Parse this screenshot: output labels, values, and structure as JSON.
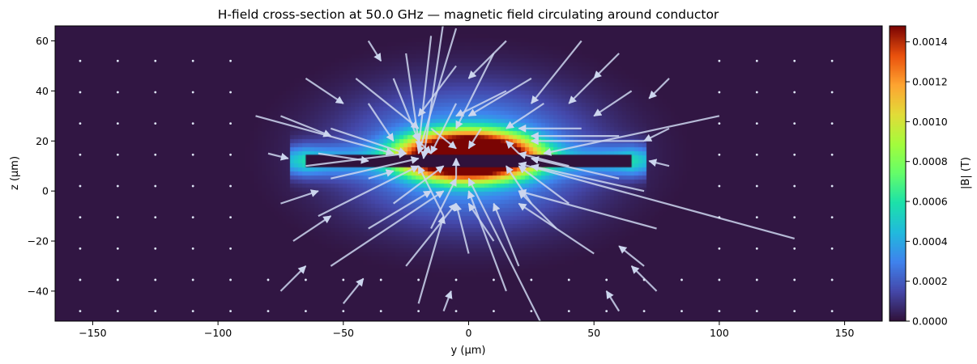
{
  "chart_data": {
    "type": "heatmap",
    "title": "H-field cross-section at 50.0 GHz — magnetic field circulating around conductor",
    "xlabel": "y (µm)",
    "ylabel": "z (µm)",
    "colorbar_label": "|B| (T)",
    "xlim": [
      -165,
      165
    ],
    "ylim": [
      -52,
      66
    ],
    "xticks": [
      -150,
      -100,
      -50,
      0,
      50,
      100,
      150
    ],
    "xtick_labels": [
      "−150",
      "−100",
      "−50",
      "0",
      "50",
      "100",
      "150"
    ],
    "yticks": [
      -40,
      -20,
      0,
      20,
      40,
      60
    ],
    "ytick_labels": [
      "−40",
      "−20",
      "0",
      "20",
      "40",
      "60"
    ],
    "clim": [
      0,
      0.00148
    ],
    "cticks": [
      0,
      0.0002,
      0.0004,
      0.0006,
      0.0008,
      0.001,
      0.0012,
      0.0014
    ],
    "ctick_labels": [
      "0.0000",
      "0.0002",
      "0.0004",
      "0.0006",
      "0.0008",
      "0.0010",
      "0.0012",
      "0.0014"
    ],
    "colormap": "turbo",
    "field_model": {
      "conductor": {
        "y_range": [
          -65,
          65
        ],
        "z_center": 12,
        "thickness": 2.5
      },
      "peak_region": {
        "y_center": 0,
        "z_center": 14,
        "y_halfwidth": 28,
        "z_halfwidth": 10,
        "value": 0.0015
      },
      "decay": {
        "y_scale": 48,
        "z_scale": 26
      },
      "background_value": 1e-05
    },
    "arrows": [
      {
        "y": -20,
        "z": 20,
        "u": 5,
        "v": -5
      },
      {
        "y": -55,
        "z": 25,
        "u": 30,
        "v": -10
      },
      {
        "y": -85,
        "z": 30,
        "u": 55,
        "v": -15
      },
      {
        "y": -45,
        "z": 45,
        "u": 25,
        "v": -20
      },
      {
        "y": -25,
        "z": 55,
        "u": 5,
        "v": -35
      },
      {
        "y": -15,
        "z": 62,
        "u": -5,
        "v": -45
      },
      {
        "y": -10,
        "z": 68,
        "u": -8,
        "v": -55
      },
      {
        "y": -5,
        "z": 65,
        "u": -15,
        "v": -50
      },
      {
        "y": 10,
        "z": 55,
        "u": -15,
        "v": -30
      },
      {
        "y": -40,
        "z": 35,
        "u": 10,
        "v": -15
      },
      {
        "y": -30,
        "z": 45,
        "u": 10,
        "v": -25
      },
      {
        "y": -5,
        "z": 35,
        "u": -10,
        "v": -20
      },
      {
        "y": -65,
        "z": 10,
        "u": 40,
        "v": 5
      },
      {
        "y": -55,
        "z": 5,
        "u": 35,
        "v": 8
      },
      {
        "y": -30,
        "z": -5,
        "u": 20,
        "v": 15
      },
      {
        "y": -10,
        "z": -10,
        "u": -10,
        "v": 20
      },
      {
        "y": -15,
        "z": -15,
        "u": 10,
        "v": 20
      },
      {
        "y": -20,
        "z": -45,
        "u": 10,
        "v": 35
      },
      {
        "y": -55,
        "z": -30,
        "u": 45,
        "v": 30
      },
      {
        "y": -60,
        "z": -10,
        "u": 40,
        "v": 20
      },
      {
        "y": -40,
        "z": -15,
        "u": 25,
        "v": 15
      },
      {
        "y": -25,
        "z": -30,
        "u": 20,
        "v": 25
      },
      {
        "y": 30,
        "z": -55,
        "u": -30,
        "v": 60
      },
      {
        "y": 15,
        "z": -40,
        "u": -15,
        "v": 40
      },
      {
        "y": 20,
        "z": -30,
        "u": -10,
        "v": 25
      },
      {
        "y": 0,
        "z": -25,
        "u": -5,
        "v": 20
      },
      {
        "y": 10,
        "z": -20,
        "u": -10,
        "v": 15
      },
      {
        "y": 45,
        "z": 60,
        "u": -20,
        "v": -25
      },
      {
        "y": 15,
        "z": 60,
        "u": -15,
        "v": -15
      },
      {
        "y": -5,
        "z": 50,
        "u": -15,
        "v": -20
      },
      {
        "y": 25,
        "z": 45,
        "u": -25,
        "v": -15
      },
      {
        "y": 15,
        "z": 40,
        "u": -20,
        "v": -10
      },
      {
        "y": 30,
        "z": 35,
        "u": -15,
        "v": -10
      },
      {
        "y": 100,
        "z": 30,
        "u": -70,
        "v": -15
      },
      {
        "y": 70,
        "z": 20,
        "u": -45,
        "v": 0
      },
      {
        "y": 60,
        "z": 22,
        "u": -35,
        "v": 0
      },
      {
        "y": 45,
        "z": 25,
        "u": -25,
        "v": 0
      },
      {
        "y": 40,
        "z": 10,
        "u": -20,
        "v": 5
      },
      {
        "y": 60,
        "z": 5,
        "u": -35,
        "v": 8
      },
      {
        "y": 70,
        "z": 0,
        "u": -45,
        "v": 10
      },
      {
        "y": 40,
        "z": -5,
        "u": -20,
        "v": 15
      },
      {
        "y": 25,
        "z": -5,
        "u": -10,
        "v": 15
      },
      {
        "y": 130,
        "z": -19,
        "u": -110,
        "v": 30
      },
      {
        "y": 75,
        "z": -15,
        "u": -55,
        "v": 15
      },
      {
        "y": 50,
        "z": -25,
        "u": -30,
        "v": 20
      },
      {
        "y": 35,
        "z": -15,
        "u": -15,
        "v": 15
      },
      {
        "y": -5,
        "z": 5,
        "u": 0,
        "v": 8
      },
      {
        "y": -15,
        "z": 25,
        "u": 10,
        "v": -8
      },
      {
        "y": 5,
        "z": 25,
        "u": -5,
        "v": -8
      },
      {
        "y": 20,
        "z": 15,
        "u": -5,
        "v": 5
      },
      {
        "y": -40,
        "z": 5,
        "u": 10,
        "v": 3
      },
      {
        "y": -60,
        "z": 15,
        "u": 20,
        "v": -3
      },
      {
        "y": 50,
        "z": 45,
        "u": -10,
        "v": -10
      },
      {
        "y": 65,
        "z": 40,
        "u": -15,
        "v": -10
      },
      {
        "y": 60,
        "z": 55,
        "u": -10,
        "v": -10
      },
      {
        "y": -65,
        "z": 45,
        "u": 15,
        "v": -10
      },
      {
        "y": -75,
        "z": 30,
        "u": 20,
        "v": -8
      },
      {
        "y": -75,
        "z": -5,
        "u": 15,
        "v": 5
      },
      {
        "y": -70,
        "z": -20,
        "u": 15,
        "v": 10
      },
      {
        "y": -75,
        "z": -40,
        "u": 10,
        "v": 10
      },
      {
        "y": 70,
        "z": -30,
        "u": -10,
        "v": 8
      },
      {
        "y": 75,
        "z": -40,
        "u": -10,
        "v": 10
      },
      {
        "y": -40,
        "z": 60,
        "u": 5,
        "v": -8
      },
      {
        "y": 80,
        "z": 45,
        "u": -8,
        "v": -8
      },
      {
        "y": 80,
        "z": 25,
        "u": -10,
        "v": -5
      },
      {
        "y": 80,
        "z": 10,
        "u": -8,
        "v": 2
      },
      {
        "y": -80,
        "z": 15,
        "u": 8,
        "v": -2
      },
      {
        "y": -10,
        "z": -48,
        "u": 3,
        "v": 8
      },
      {
        "y": 60,
        "z": -48,
        "u": -5,
        "v": 8
      },
      {
        "y": -50,
        "z": -45,
        "u": 8,
        "v": 10
      }
    ]
  }
}
